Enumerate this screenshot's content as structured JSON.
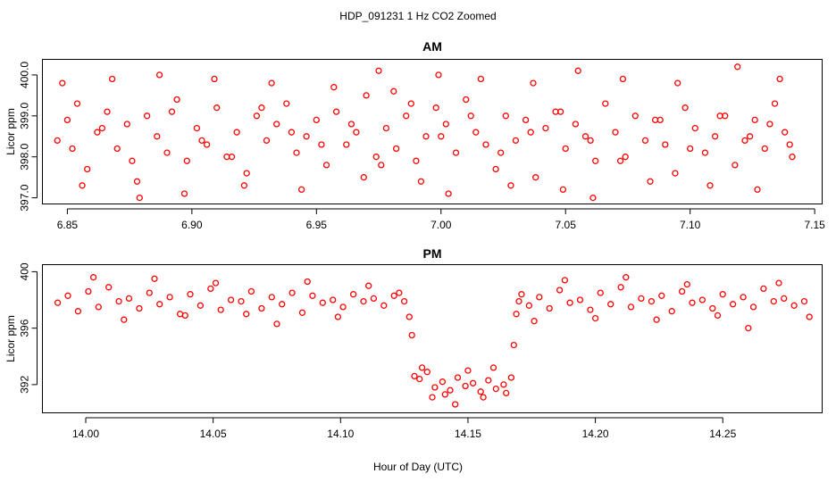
{
  "chart_data": {
    "title": "HDP_091231  1 Hz CO2 Zoomed",
    "xlabel": "Hour of Day (UTC)",
    "point_color": "#ff0000",
    "panels": [
      {
        "type": "scatter",
        "title": "AM",
        "ylabel": "Licor ppm",
        "xlim": [
          6.84,
          7.153
        ],
        "ylim": [
          396.85,
          400.38
        ],
        "xticks": [
          6.85,
          6.9,
          6.95,
          7.0,
          7.05,
          7.1,
          7.15
        ],
        "xtick_labels": [
          "6.85",
          "6.90",
          "6.95",
          "7.00",
          "7.05",
          "7.10",
          "7.15"
        ],
        "yticks": [
          397.0,
          398.0,
          399.0,
          400.0
        ],
        "ytick_labels": [
          "397.0",
          "398.0",
          "399.0",
          "400.0"
        ],
        "x": [
          6.846,
          6.85,
          6.854,
          6.858,
          6.862,
          6.866,
          6.87,
          6.874,
          6.878,
          6.882,
          6.886,
          6.89,
          6.894,
          6.898,
          6.902,
          6.906,
          6.91,
          6.914,
          6.918,
          6.922,
          6.926,
          6.93,
          6.934,
          6.938,
          6.942,
          6.946,
          6.95,
          6.954,
          6.958,
          6.962,
          6.966,
          6.97,
          6.974,
          6.978,
          6.982,
          6.986,
          6.99,
          6.994,
          6.998,
          7.002,
          7.006,
          7.01,
          7.014,
          7.018,
          7.022,
          7.026,
          7.03,
          7.034,
          7.038,
          7.042,
          7.046,
          7.05,
          7.054,
          7.058,
          7.062,
          7.066,
          7.07,
          7.074,
          7.078,
          7.082,
          7.086,
          7.09,
          7.094,
          7.098,
          7.102,
          7.106,
          7.11,
          7.114,
          7.118,
          7.122,
          7.126,
          7.13,
          7.134,
          7.138,
          7.141,
          6.848,
          6.856,
          6.868,
          6.879,
          6.887,
          6.897,
          6.909,
          6.921,
          6.932,
          6.944,
          6.957,
          6.969,
          6.975,
          6.981,
          6.992,
          6.999,
          7.003,
          7.016,
          7.028,
          7.037,
          7.049,
          7.055,
          7.061,
          7.073,
          7.084,
          7.095,
          7.108,
          7.119,
          7.127,
          7.136,
          6.852,
          6.864,
          6.876,
          6.892,
          6.904,
          6.916,
          6.928,
          6.94,
          6.952,
          6.964,
          6.976,
          6.988,
          7.0,
          7.012,
          7.024,
          7.036,
          7.048,
          7.06,
          7.072,
          7.088,
          7.1,
          7.112,
          7.124,
          7.132,
          7.14
        ],
        "y": [
          398.4,
          398.9,
          399.3,
          397.7,
          398.6,
          399.1,
          398.2,
          398.8,
          397.4,
          399.0,
          398.5,
          398.1,
          399.4,
          397.9,
          398.7,
          398.3,
          399.2,
          398.0,
          398.6,
          397.6,
          399.0,
          398.4,
          398.8,
          399.3,
          398.1,
          398.5,
          398.9,
          397.8,
          399.1,
          398.3,
          398.6,
          399.5,
          398.0,
          398.7,
          398.2,
          399.0,
          397.9,
          398.5,
          399.2,
          398.8,
          398.1,
          399.4,
          398.6,
          398.3,
          397.7,
          399.0,
          398.4,
          398.9,
          397.5,
          398.7,
          399.1,
          398.2,
          398.8,
          398.5,
          397.9,
          399.3,
          398.6,
          398.0,
          399.0,
          398.4,
          398.9,
          398.3,
          397.6,
          399.2,
          398.7,
          398.1,
          398.5,
          399.0,
          397.8,
          398.4,
          398.9,
          398.2,
          399.3,
          398.6,
          398.0,
          399.8,
          397.3,
          399.9,
          397.0,
          400.0,
          397.1,
          399.9,
          397.3,
          399.8,
          397.2,
          399.7,
          397.5,
          400.1,
          399.6,
          397.4,
          400.0,
          397.1,
          399.9,
          397.3,
          399.8,
          397.2,
          400.1,
          397.0,
          399.9,
          397.4,
          399.8,
          397.3,
          400.2,
          397.2,
          399.9,
          398.2,
          398.7,
          397.9,
          399.1,
          398.4,
          398.0,
          399.2,
          398.6,
          398.3,
          398.8,
          397.8,
          399.3,
          398.5,
          399.0,
          398.1,
          398.6,
          399.1,
          398.4,
          397.9,
          398.9,
          398.2,
          399.0,
          398.5,
          398.8,
          398.3
        ]
      },
      {
        "type": "scatter",
        "title": "PM",
        "ylabel": "Licor ppm",
        "xlim": [
          13.983,
          14.289
        ],
        "ylim": [
          390.0,
          400.5
        ],
        "xticks": [
          14.0,
          14.05,
          14.1,
          14.15,
          14.2,
          14.25
        ],
        "xtick_labels": [
          "14.00",
          "14.05",
          "14.10",
          "14.15",
          "14.20",
          "14.25"
        ],
        "yticks": [
          392,
          396,
          400
        ],
        "ytick_labels": [
          "392",
          "396",
          "400"
        ],
        "x": [
          13.989,
          13.993,
          13.997,
          14.001,
          14.005,
          14.009,
          14.013,
          14.017,
          14.021,
          14.025,
          14.029,
          14.033,
          14.037,
          14.041,
          14.045,
          14.049,
          14.053,
          14.057,
          14.061,
          14.065,
          14.069,
          14.073,
          14.077,
          14.081,
          14.085,
          14.089,
          14.093,
          14.097,
          14.101,
          14.105,
          14.109,
          14.113,
          14.117,
          14.121,
          14.125,
          14.127,
          14.128,
          14.129,
          14.131,
          14.134,
          14.137,
          14.14,
          14.143,
          14.146,
          14.149,
          14.152,
          14.155,
          14.158,
          14.161,
          14.164,
          14.167,
          14.168,
          14.169,
          14.17,
          14.171,
          14.174,
          14.178,
          14.182,
          14.186,
          14.19,
          14.194,
          14.198,
          14.202,
          14.206,
          14.21,
          14.214,
          14.218,
          14.222,
          14.226,
          14.23,
          14.234,
          14.238,
          14.242,
          14.246,
          14.25,
          14.254,
          14.258,
          14.262,
          14.266,
          14.27,
          14.274,
          14.278,
          14.282,
          14.003,
          14.015,
          14.027,
          14.039,
          14.051,
          14.063,
          14.075,
          14.087,
          14.099,
          14.111,
          14.123,
          14.132,
          14.136,
          14.141,
          14.145,
          14.15,
          14.156,
          14.16,
          14.165,
          14.176,
          14.188,
          14.2,
          14.212,
          14.224,
          14.236,
          14.248,
          14.26,
          14.272,
          14.284
        ],
        "y": [
          397.8,
          398.3,
          397.2,
          398.6,
          397.5,
          398.9,
          397.9,
          398.1,
          397.4,
          398.5,
          397.7,
          398.2,
          397.0,
          398.4,
          397.6,
          398.8,
          397.3,
          398.0,
          397.9,
          398.6,
          397.4,
          398.2,
          397.7,
          398.5,
          397.1,
          398.3,
          397.8,
          398.0,
          397.5,
          398.4,
          397.9,
          398.1,
          397.6,
          398.3,
          397.9,
          396.8,
          395.5,
          392.6,
          392.4,
          392.9,
          391.8,
          392.2,
          391.6,
          392.5,
          391.9,
          392.1,
          391.5,
          392.3,
          391.7,
          392.0,
          392.5,
          394.8,
          397.0,
          397.9,
          398.4,
          397.6,
          398.2,
          397.4,
          398.7,
          397.8,
          398.0,
          397.3,
          398.5,
          397.7,
          398.9,
          397.5,
          398.1,
          397.9,
          398.3,
          397.2,
          398.6,
          397.8,
          398.0,
          397.4,
          398.4,
          397.7,
          398.2,
          397.5,
          398.8,
          397.9,
          398.1,
          397.6,
          397.9,
          399.6,
          396.6,
          399.5,
          396.9,
          399.2,
          397.0,
          396.3,
          399.3,
          396.8,
          399.0,
          398.5,
          393.2,
          391.1,
          391.3,
          390.6,
          393.0,
          391.1,
          393.2,
          391.4,
          396.5,
          399.4,
          396.7,
          399.6,
          396.6,
          399.1,
          396.9,
          396.0,
          399.2,
          396.8
        ]
      }
    ]
  }
}
